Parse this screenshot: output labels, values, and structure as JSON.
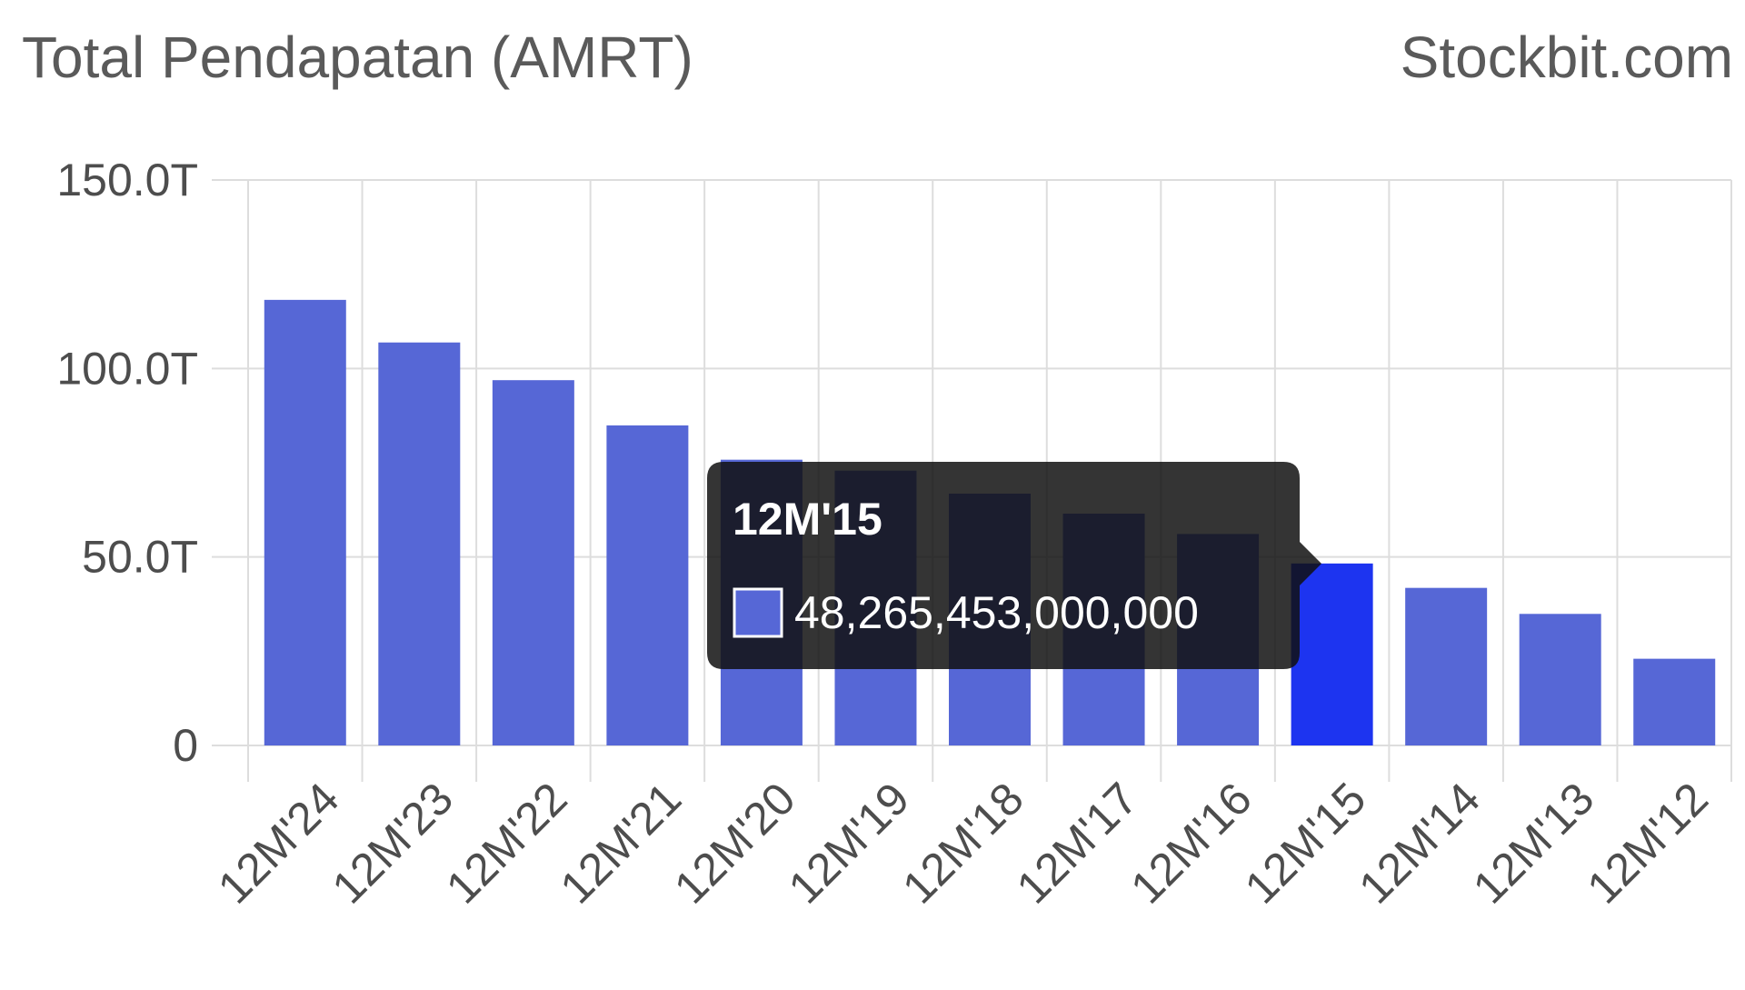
{
  "header": {
    "title": "Total Pendapatan (AMRT)",
    "brand": "Stockbit.com"
  },
  "colors": {
    "bar": "#5667d6",
    "bar_highlight": "#1d34f0",
    "grid": "#dddddd",
    "tooltip_bg": "#101010"
  },
  "chart_data": {
    "type": "bar",
    "title": "Total Pendapatan (AMRT)",
    "categories": [
      "12M'24",
      "12M'23",
      "12M'22",
      "12M'21",
      "12M'20",
      "12M'19",
      "12M'18",
      "12M'17",
      "12M'16",
      "12M'15",
      "12M'14",
      "12M'13",
      "12M'12"
    ],
    "values": [
      118.2,
      106.9,
      96.9,
      84.9,
      75.8,
      72.9,
      66.8,
      61.5,
      56.1,
      48.27,
      41.8,
      34.9,
      23.0
    ],
    "unit": "T",
    "ylim": [
      0,
      150
    ],
    "yticks": [
      "150.0T",
      "100.0T",
      "50.0T",
      "0"
    ],
    "grid": true,
    "highlight_index": 9,
    "tooltip": {
      "title": "12M'15",
      "value": "48,265,453,000,000"
    }
  }
}
